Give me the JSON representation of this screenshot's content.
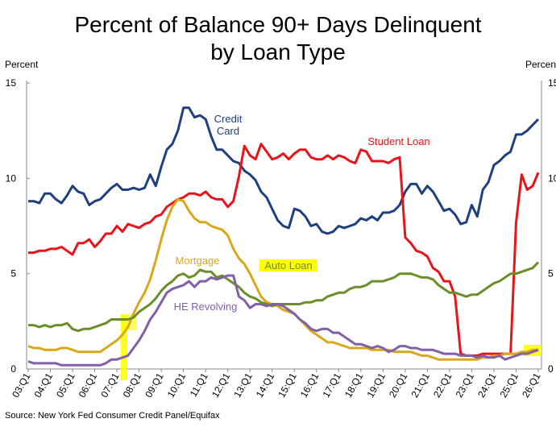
{
  "chart_data": {
    "type": "line",
    "title": "Percent of Balance 90+ Days Delinquent by Loan Type",
    "y_label": "Percent",
    "y2_label": "Percent",
    "source": "Source: New York Fed Consumer Credit Panel/Equifax",
    "categories": [
      "03:Q1",
      null,
      null,
      null,
      "04:Q1",
      null,
      null,
      null,
      "05:Q1",
      null,
      null,
      null,
      "06:Q1",
      null,
      null,
      null,
      "07:Q1",
      null,
      null,
      null,
      "08:Q1",
      null,
      null,
      null,
      "09:Q1",
      null,
      null,
      null,
      "10:Q1",
      null,
      null,
      null,
      "11:Q1",
      null,
      null,
      null,
      "12:Q1",
      null,
      null,
      null,
      "13:Q1",
      null,
      null,
      null,
      "14:Q1",
      null,
      null,
      null,
      "15:Q1",
      null,
      null,
      null,
      "16:Q1",
      null,
      null,
      null,
      "17:Q1",
      null,
      null,
      null,
      "18:Q1",
      null,
      null,
      null,
      "19:Q1",
      null,
      null,
      null,
      "20:Q1",
      null,
      null,
      null,
      "21:Q1",
      null,
      null,
      null,
      "22:Q1",
      null,
      null,
      null,
      "23:Q1",
      null,
      null,
      null,
      "24:Q1",
      null,
      null,
      null,
      "25:Q1",
      null,
      null,
      null,
      "26:Q1"
    ],
    "ylim": [
      0,
      15
    ],
    "yticks": [
      0,
      5,
      10,
      15
    ],
    "series": [
      {
        "name": "Credit Card",
        "color": "#1f3f7f",
        "values": [
          8.8,
          8.8,
          8.7,
          9.2,
          9.2,
          8.9,
          8.7,
          9.1,
          9.6,
          9.3,
          9.2,
          8.6,
          8.8,
          8.9,
          9.2,
          9.5,
          9.7,
          9.4,
          9.4,
          9.5,
          9.4,
          9.5,
          10.2,
          9.6,
          10.6,
          11.5,
          11.8,
          12.5,
          13.7,
          13.7,
          13.2,
          13.3,
          13.1,
          12.2,
          11.5,
          11.5,
          11.2,
          10.9,
          10.8,
          10.4,
          10.2,
          9.9,
          9.3,
          9.0,
          8.4,
          7.8,
          7.5,
          7.4,
          8.4,
          8.3,
          8.0,
          7.5,
          7.6,
          7.2,
          7.1,
          7.2,
          7.5,
          7.4,
          7.5,
          7.6,
          7.9,
          7.8,
          8.0,
          7.8,
          8.2,
          8.2,
          8.3,
          8.6,
          9.3,
          9.7,
          9.7,
          9.2,
          9.6,
          9.3,
          8.8,
          8.3,
          8.4,
          8.1,
          7.6,
          7.7,
          8.6,
          8.0,
          9.4,
          9.8,
          10.7,
          10.9,
          11.2,
          11.4,
          12.3,
          12.3,
          12.5,
          12.8,
          13.1
        ]
      },
      {
        "name": "Student Loan",
        "color": "#e8141a",
        "values": [
          6.1,
          6.1,
          6.2,
          6.2,
          6.3,
          6.3,
          6.4,
          6.2,
          6.0,
          6.6,
          6.6,
          6.8,
          6.4,
          6.7,
          7.1,
          7.1,
          7.5,
          7.2,
          7.6,
          7.5,
          7.4,
          7.6,
          7.7,
          8.0,
          8.1,
          8.5,
          8.7,
          8.9,
          9.0,
          9.2,
          9.2,
          9.1,
          9.3,
          9.0,
          8.9,
          8.9,
          8.5,
          8.8,
          10.1,
          11.7,
          11.2,
          11.0,
          11.8,
          11.4,
          11.0,
          11.1,
          11.3,
          11.0,
          11.3,
          11.5,
          11.5,
          11.1,
          11.0,
          11.0,
          11.2,
          11.0,
          11.2,
          11.1,
          10.9,
          10.8,
          11.5,
          11.4,
          10.9,
          10.9,
          10.9,
          10.8,
          11.0,
          11.1,
          6.9,
          6.6,
          6.2,
          6.1,
          5.9,
          5.3,
          5.1,
          4.6,
          4.6,
          3.8,
          0.8,
          0.7,
          0.7,
          0.7,
          0.8,
          0.8,
          0.8,
          0.8,
          0.8,
          0.8,
          7.7,
          10.2,
          9.4,
          9.6,
          10.3
        ]
      },
      {
        "name": "Mortgage",
        "color": "#d9a81a",
        "values": [
          1.2,
          1.1,
          1.1,
          1.0,
          1.0,
          1.0,
          1.1,
          1.1,
          1.0,
          0.9,
          0.9,
          0.9,
          0.9,
          0.9,
          1.1,
          1.3,
          1.5,
          1.8,
          2.2,
          2.9,
          3.5,
          4.0,
          4.7,
          5.7,
          6.8,
          7.8,
          8.5,
          8.9,
          8.8,
          8.3,
          7.9,
          7.7,
          7.7,
          7.5,
          7.4,
          7.3,
          7.0,
          6.3,
          5.8,
          5.5,
          5.0,
          4.4,
          3.8,
          3.5,
          3.4,
          3.3,
          3.1,
          3.0,
          2.9,
          2.6,
          2.3,
          2.0,
          1.8,
          1.6,
          1.4,
          1.4,
          1.3,
          1.2,
          1.1,
          1.1,
          1.1,
          1.1,
          1.0,
          1.0,
          1.0,
          1.0,
          0.9,
          0.9,
          0.9,
          0.9,
          0.8,
          0.7,
          0.7,
          0.6,
          0.5,
          0.5,
          0.5,
          0.5,
          0.5,
          0.5,
          0.5,
          0.5,
          0.6,
          0.6,
          0.7,
          0.7,
          0.8,
          0.8,
          0.8,
          0.9,
          0.9,
          1.0,
          1.0
        ]
      },
      {
        "name": "Auto Loan",
        "color": "#6b8e2a",
        "values": [
          2.3,
          2.3,
          2.2,
          2.3,
          2.2,
          2.3,
          2.3,
          2.4,
          2.1,
          2.0,
          2.1,
          2.1,
          2.2,
          2.3,
          2.4,
          2.6,
          2.6,
          2.6,
          2.6,
          2.7,
          3.0,
          3.2,
          3.4,
          3.7,
          4.1,
          4.4,
          4.6,
          4.9,
          5.0,
          4.8,
          4.9,
          5.2,
          5.1,
          5.1,
          4.8,
          4.9,
          4.7,
          4.5,
          4.3,
          4.0,
          3.8,
          3.7,
          3.5,
          3.4,
          3.3,
          3.4,
          3.4,
          3.4,
          3.4,
          3.4,
          3.5,
          3.5,
          3.6,
          3.6,
          3.8,
          3.9,
          4.0,
          4.0,
          4.2,
          4.3,
          4.3,
          4.4,
          4.6,
          4.6,
          4.6,
          4.7,
          4.8,
          5.0,
          5.0,
          5.0,
          4.9,
          4.8,
          4.8,
          4.7,
          4.4,
          4.2,
          4.0,
          4.0,
          3.9,
          3.8,
          3.9,
          3.9,
          4.1,
          4.3,
          4.5,
          4.6,
          4.8,
          5.0,
          5.0,
          5.1,
          5.2,
          5.3,
          5.6
        ]
      },
      {
        "name": "HE Revolving",
        "color": "#8060a8",
        "values": [
          0.4,
          0.3,
          0.3,
          0.3,
          0.3,
          0.3,
          0.2,
          0.2,
          0.2,
          0.2,
          0.2,
          0.2,
          0.2,
          0.2,
          0.3,
          0.5,
          0.5,
          0.6,
          0.7,
          1.1,
          1.5,
          2.0,
          2.6,
          3.0,
          3.5,
          4.0,
          4.2,
          4.3,
          4.4,
          4.6,
          4.3,
          4.6,
          4.6,
          4.8,
          4.7,
          4.8,
          4.9,
          4.9,
          3.8,
          3.6,
          3.2,
          3.4,
          3.4,
          3.3,
          3.4,
          3.4,
          3.3,
          3.1,
          2.9,
          2.6,
          2.4,
          2.1,
          2.0,
          2.1,
          2.1,
          1.9,
          1.9,
          1.7,
          1.5,
          1.3,
          1.3,
          1.2,
          1.1,
          1.2,
          1.1,
          0.9,
          1.0,
          1.2,
          1.2,
          1.1,
          1.1,
          1.0,
          1.0,
          1.0,
          0.9,
          0.8,
          0.8,
          0.8,
          0.7,
          0.7,
          0.7,
          0.6,
          0.7,
          0.6,
          0.6,
          0.7,
          0.5,
          0.6,
          0.7,
          0.8,
          0.8,
          0.9,
          1.0
        ]
      }
    ]
  }
}
